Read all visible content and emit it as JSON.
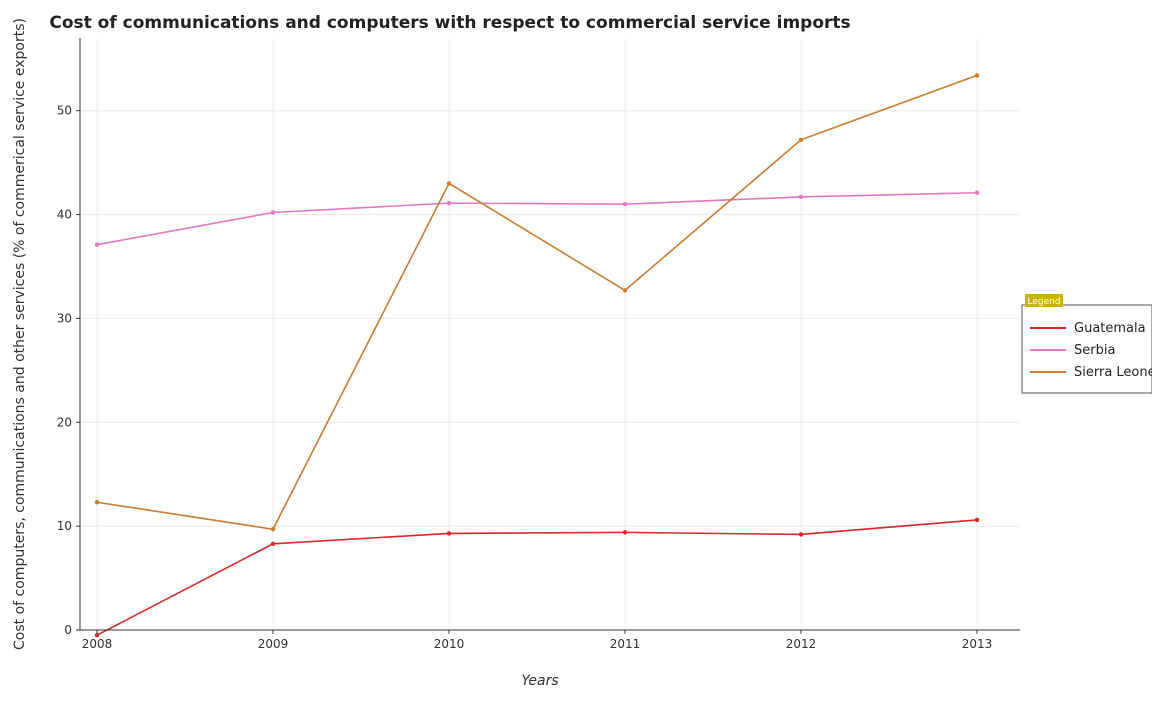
{
  "chart_data": {
    "type": "line",
    "title": "Cost of communications and computers with respect to commercial service imports",
    "xlabel": "Years",
    "ylabel": "Cost of computers, communications and other services (% of commerical service exports)",
    "categories": [
      "2008",
      "2009",
      "2010",
      "2011",
      "2012",
      "2013"
    ],
    "ylim": [
      0,
      57
    ],
    "yticks": [
      0,
      10,
      20,
      30,
      40,
      50
    ],
    "grid": true,
    "legend": {
      "title": "Legend",
      "position": "right"
    },
    "series": [
      {
        "name": "Guatemala",
        "color": "#d62728",
        "values": [
          -0.5,
          8.3,
          9.3,
          9.4,
          9.2,
          10.6
        ]
      },
      {
        "name": "Serbia",
        "color": "#e377c2",
        "values": [
          37.1,
          40.2,
          41.1,
          41.0,
          41.7,
          42.1
        ]
      },
      {
        "name": "Sierra Leone",
        "color": "#c97c2e",
        "values": [
          12.3,
          9.7,
          43.0,
          32.7,
          47.2,
          53.4
        ]
      }
    ]
  }
}
